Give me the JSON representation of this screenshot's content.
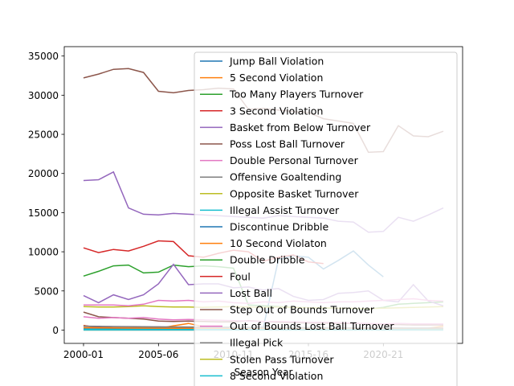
{
  "chart_data": {
    "type": "line",
    "xlabel": "Season Year",
    "ylabel": "",
    "title": "",
    "x": [
      "2000-01",
      "2001-02",
      "2002-03",
      "2003-04",
      "2004-05",
      "2005-06",
      "2006-07",
      "2007-08",
      "2008-09",
      "2009-10",
      "2010-11",
      "2011-12",
      "2012-13",
      "2013-14",
      "2014-15",
      "2015-16",
      "2016-17",
      "2017-18",
      "2018-19",
      "2019-20",
      "2020-21",
      "2021-22",
      "2022-23",
      "2023-24",
      "2024-25"
    ],
    "x_tick_labels": [
      "2000-01",
      "2005-06",
      "2010-11",
      "2015-16",
      "2020-21"
    ],
    "y_ticks": [
      0,
      5000,
      10000,
      15000,
      20000,
      25000,
      30000,
      35000
    ],
    "y_tick_labels": [
      "0",
      "5000",
      "10000",
      "15000",
      "20000",
      "25000",
      "30000",
      "35000"
    ],
    "ylim": [
      -1700,
      36200
    ],
    "legend_position": "upper right",
    "series": [
      {
        "name": "Jump Ball Violation",
        "color": "#1f77b4",
        "values": [
          60,
          55,
          50,
          50,
          45,
          50,
          55,
          50,
          45,
          50,
          45,
          40,
          45,
          40,
          40,
          35,
          35,
          30,
          30,
          30,
          25,
          30,
          30,
          25,
          25
        ]
      },
      {
        "name": "5 Second Violation",
        "color": "#ff7f0e",
        "values": [
          600,
          250,
          220,
          220,
          200,
          200,
          550,
          850,
          450,
          300,
          280,
          250,
          240,
          230,
          220,
          210,
          200,
          200,
          210,
          190,
          180,
          210,
          200,
          250,
          480
        ]
      },
      {
        "name": "Too Many Players Turnover",
        "color": "#2ca02c",
        "values": [
          40,
          35,
          30,
          30,
          30,
          30,
          30,
          30,
          30,
          30,
          30,
          25,
          25,
          25,
          25,
          25,
          25,
          25,
          25,
          25,
          25,
          25,
          25,
          25,
          25
        ]
      },
      {
        "name": "3 Second Violation",
        "color": "#d62728",
        "values": [
          550,
          400,
          300,
          300,
          350,
          400,
          350,
          300,
          300,
          280,
          260,
          250,
          250,
          240,
          230,
          220,
          210,
          200,
          200,
          190,
          180,
          190,
          190,
          180,
          180
        ]
      },
      {
        "name": "Basket from Below Turnover",
        "color": "#9467bd",
        "values": [
          10,
          10,
          10,
          10,
          10,
          10,
          10,
          10,
          10,
          10,
          10,
          10,
          10,
          10,
          10,
          10,
          10,
          10,
          10,
          10,
          10,
          10,
          10,
          10,
          10
        ]
      },
      {
        "name": "Poss Lost Ball Turnover",
        "color": "#8c564b",
        "values": [
          32200,
          32700,
          33300,
          33400,
          32900,
          30500,
          30300,
          30600,
          30700,
          30900,
          30800,
          28200,
          28300,
          28100,
          27900,
          27800,
          27000,
          26700,
          26400,
          22700,
          22800,
          26100,
          24800,
          24700,
          25400
        ]
      },
      {
        "name": "Double Personal Turnover",
        "color": "#e377c2",
        "values": [
          150,
          140,
          130,
          130,
          120,
          120,
          110,
          110,
          110,
          100,
          100,
          90,
          90,
          90,
          90,
          90,
          80,
          80,
          80,
          70,
          70,
          70,
          70,
          70,
          70
        ]
      },
      {
        "name": "Offensive Goaltending",
        "color": "#7f7f7f",
        "values": [
          300,
          300,
          290,
          280,
          280,
          270,
          270,
          270,
          260,
          260,
          250,
          240,
          250,
          240,
          230,
          230,
          230,
          220,
          220,
          210,
          200,
          210,
          210,
          200,
          200
        ]
      },
      {
        "name": "Opposite Basket Turnover",
        "color": "#bcbd22",
        "values": [
          5,
          5,
          5,
          5,
          5,
          5,
          5,
          5,
          5,
          5,
          5,
          5,
          5,
          5,
          5,
          5,
          5,
          5,
          5,
          5,
          5,
          5,
          5,
          5,
          5
        ]
      },
      {
        "name": "Illegal Assist Turnover",
        "color": "#17becf",
        "values": [
          20,
          20,
          20,
          20,
          20,
          20,
          20,
          20,
          20,
          20,
          20,
          20,
          20,
          20,
          20,
          20,
          20,
          20,
          20,
          20,
          20,
          20,
          20,
          20,
          20
        ]
      },
      {
        "name": "Discontinue Dribble",
        "color": "#1f77b4",
        "values": [
          150,
          130,
          120,
          110,
          100,
          100,
          90,
          90,
          80,
          80,
          80,
          300,
          400,
          9000,
          9500,
          9300,
          7800,
          8900,
          10100,
          8300,
          6800,
          null,
          null,
          null,
          null
        ]
      },
      {
        "name": "10 Second Violaton",
        "color": "#ff7f0e",
        "values": [
          300,
          280,
          260,
          250,
          240,
          230,
          220,
          210,
          200,
          190,
          180,
          170,
          160,
          150,
          150,
          140,
          140,
          130,
          130,
          120,
          110,
          110,
          100,
          100,
          100
        ]
      },
      {
        "name": "Double Dribble",
        "color": "#2ca02c",
        "values": [
          6900,
          7500,
          8200,
          8300,
          7300,
          7400,
          8300,
          8100,
          8200,
          8100,
          7900,
          3200,
          3100,
          3000,
          2900,
          2850,
          2800,
          2800,
          2750,
          2700,
          2900,
          3300,
          3400,
          3500,
          3600
        ]
      },
      {
        "name": "Foul",
        "color": "#d62728",
        "values": [
          10500,
          9900,
          10300,
          10100,
          10700,
          11400,
          11300,
          9500,
          9300,
          9800,
          10200,
          10000,
          8800,
          9300,
          9600,
          8700,
          8500,
          null,
          null,
          null,
          null,
          null,
          null,
          null,
          null
        ]
      },
      {
        "name": "Lost Ball",
        "color": "#9467bd",
        "values": [
          19100,
          19200,
          20200,
          15600,
          14800,
          14700,
          14900,
          14800,
          14700,
          14600,
          14500,
          14400,
          14300,
          14600,
          14500,
          14400,
          14300,
          13900,
          13800,
          12500,
          12600,
          14400,
          13900,
          14700,
          15600
        ]
      },
      {
        "name": "Step Out of Bounds Turnover",
        "color": "#8c564b",
        "values": [
          2300,
          1700,
          1600,
          1500,
          1400,
          1150,
          1100,
          1150,
          1100,
          1050,
          1050,
          1200,
          1100,
          1000,
          950,
          900,
          900,
          850,
          850,
          800,
          700,
          700,
          650,
          650,
          650
        ]
      },
      {
        "name": "Out of Bounds Lost Ball Turnover",
        "color": "#e377c2",
        "values": [
          1700,
          1500,
          1600,
          1500,
          1600,
          1400,
          1300,
          1350,
          1300,
          1250,
          1200,
          1150,
          1100,
          1100,
          1050,
          1000,
          1000,
          950,
          900,
          850,
          800,
          850,
          800,
          800,
          780
        ]
      },
      {
        "name": "Illegal Pick",
        "color": "#7f7f7f",
        "values": [
          500,
          480,
          460,
          450,
          440,
          420,
          410,
          400,
          390,
          380,
          370,
          360,
          350,
          340,
          330,
          320,
          310,
          300,
          290,
          280,
          270,
          270,
          260,
          260,
          250
        ]
      },
      {
        "name": "Stolen Pass Turnover",
        "color": "#bcbd22",
        "values": [
          3000,
          2950,
          2950,
          3000,
          3100,
          3000,
          2950,
          2950,
          2900,
          2950,
          3000,
          2950,
          2900,
          2950,
          2900,
          2850,
          2850,
          2800,
          2800,
          2750,
          2800,
          2850,
          2900,
          2950,
          3000
        ]
      },
      {
        "name": "8 Second Violation",
        "color": "#17becf",
        "values": [
          100,
          95,
          90,
          90,
          85,
          85,
          80,
          80,
          75,
          75,
          70,
          70,
          65,
          65,
          60,
          60,
          55,
          55,
          50,
          50,
          45,
          45,
          45,
          40,
          40
        ]
      },
      {
        "name": "",
        "color": "#9467bd",
        "values": [
          4400,
          3500,
          4500,
          3900,
          4500,
          5900,
          8400,
          5800,
          5900,
          5900,
          5400,
          5500,
          5100,
          5300,
          4300,
          3800,
          3900,
          4700,
          4800,
          5000,
          3800,
          3600,
          5800,
          3700,
          3100
        ]
      },
      {
        "name": "",
        "color": "#e377c2",
        "values": [
          3200,
          3200,
          3200,
          3100,
          3300,
          3800,
          3700,
          3800,
          3600,
          3700,
          3500,
          3400,
          3600,
          3500,
          3700,
          3600,
          3500,
          3600,
          3600,
          3700,
          3800,
          3900,
          4000,
          3800,
          3700
        ]
      }
    ]
  }
}
